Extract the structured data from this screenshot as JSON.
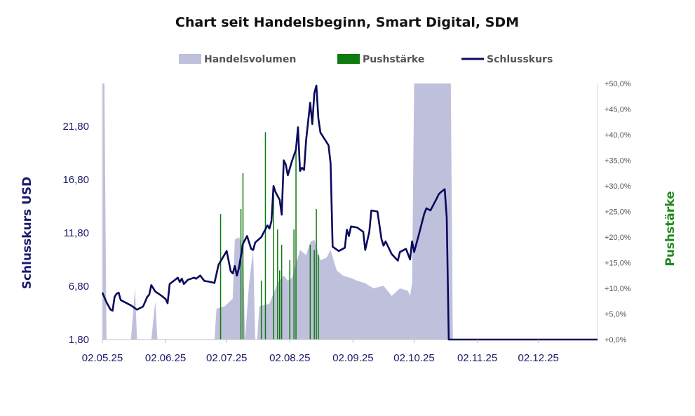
{
  "chart_data": {
    "type": "line",
    "title": "Chart seit Handelsbeginn, Smart Digital, SDM",
    "ylabel": "Schlusskurs USD",
    "y2label": "Pushstärke",
    "ylim": [
      1.8,
      25.8
    ],
    "y2lim": [
      0,
      50
    ],
    "xlim": [
      "2025-05-02",
      "2025-12-31"
    ],
    "legend_position": "top",
    "grid": false,
    "colors": {
      "volume": "#bfc0dc",
      "push": "#0f7a0f",
      "close": "#0a0a5c"
    },
    "legend": [
      "Handelsvolumen",
      "Pushstärke",
      "Schlusskurs"
    ],
    "yticks": [
      "1,80",
      "6,80",
      "11,80",
      "16,80",
      "21,80"
    ],
    "y2ticks": [
      "+0,0%",
      "+5,0%",
      "+10,0%",
      "+15,0%",
      "+20,0%",
      "+25,0%",
      "+30,0%",
      "+35,0%",
      "+40,0%",
      "+45,0%",
      "+50,0%"
    ],
    "xticks": [
      {
        "date": "2025-05-02",
        "label": "02.05.25"
      },
      {
        "date": "2025-06-02",
        "label": "02.06.25"
      },
      {
        "date": "2025-07-02",
        "label": "02.07.25"
      },
      {
        "date": "2025-08-02",
        "label": "02.08.25"
      },
      {
        "date": "2025-09-02",
        "label": "02.09.25"
      },
      {
        "date": "2025-10-02",
        "label": "02.10.25"
      },
      {
        "date": "2025-11-02",
        "label": "02.11.25"
      },
      {
        "date": "2025-12-02",
        "label": "02.12.25"
      }
    ],
    "series": [
      {
        "name": "Schlusskurs",
        "kind": "line",
        "points": [
          [
            "2025-05-02",
            6.2
          ],
          [
            "2025-05-04",
            5.3
          ],
          [
            "2025-05-06",
            4.6
          ],
          [
            "2025-05-07",
            4.5
          ],
          [
            "2025-05-08",
            5.8
          ],
          [
            "2025-05-09",
            6.1
          ],
          [
            "2025-05-10",
            6.2
          ],
          [
            "2025-05-11",
            5.5
          ],
          [
            "2025-05-13",
            5.3
          ],
          [
            "2025-05-16",
            5.0
          ],
          [
            "2025-05-19",
            4.6
          ],
          [
            "2025-05-21",
            4.8
          ],
          [
            "2025-05-22",
            4.9
          ],
          [
            "2025-05-24",
            5.8
          ],
          [
            "2025-05-25",
            6.0
          ],
          [
            "2025-05-26",
            6.9
          ],
          [
            "2025-05-28",
            6.3
          ],
          [
            "2025-05-31",
            5.9
          ],
          [
            "2025-06-02",
            5.6
          ],
          [
            "2025-06-03",
            5.2
          ],
          [
            "2025-06-04",
            7.0
          ],
          [
            "2025-06-06",
            7.3
          ],
          [
            "2025-06-08",
            7.6
          ],
          [
            "2025-06-09",
            7.2
          ],
          [
            "2025-06-10",
            7.5
          ],
          [
            "2025-06-11",
            7.0
          ],
          [
            "2025-06-13",
            7.4
          ],
          [
            "2025-06-16",
            7.6
          ],
          [
            "2025-06-17",
            7.5
          ],
          [
            "2025-06-19",
            7.8
          ],
          [
            "2025-06-21",
            7.3
          ],
          [
            "2025-06-24",
            7.2
          ],
          [
            "2025-06-26",
            7.1
          ],
          [
            "2025-06-28",
            8.8
          ],
          [
            "2025-07-02",
            10.1
          ],
          [
            "2025-07-04",
            8.2
          ],
          [
            "2025-07-05",
            8.0
          ],
          [
            "2025-07-06",
            8.7
          ],
          [
            "2025-07-07",
            7.8
          ],
          [
            "2025-07-08",
            8.5
          ],
          [
            "2025-07-10",
            10.8
          ],
          [
            "2025-07-12",
            11.5
          ],
          [
            "2025-07-14",
            10.3
          ],
          [
            "2025-07-15",
            10.2
          ],
          [
            "2025-07-16",
            10.9
          ],
          [
            "2025-07-19",
            11.4
          ],
          [
            "2025-07-22",
            12.5
          ],
          [
            "2025-07-23",
            12.2
          ],
          [
            "2025-07-24",
            12.9
          ],
          [
            "2025-07-25",
            16.2
          ],
          [
            "2025-07-26",
            15.6
          ],
          [
            "2025-07-28",
            14.9
          ],
          [
            "2025-07-29",
            13.5
          ],
          [
            "2025-07-30",
            18.6
          ],
          [
            "2025-07-31",
            18.2
          ],
          [
            "2025-08-01",
            17.2
          ],
          [
            "2025-08-03",
            18.5
          ],
          [
            "2025-08-05",
            19.6
          ],
          [
            "2025-08-06",
            21.7
          ],
          [
            "2025-08-07",
            17.6
          ],
          [
            "2025-08-08",
            17.9
          ],
          [
            "2025-08-09",
            17.7
          ],
          [
            "2025-08-10",
            20.5
          ],
          [
            "2025-08-12",
            24.0
          ],
          [
            "2025-08-13",
            22.0
          ],
          [
            "2025-08-14",
            24.9
          ],
          [
            "2025-08-15",
            25.6
          ],
          [
            "2025-08-16",
            22.5
          ],
          [
            "2025-08-17",
            21.2
          ],
          [
            "2025-08-19",
            20.6
          ],
          [
            "2025-08-21",
            20.0
          ],
          [
            "2025-08-22",
            18.3
          ],
          [
            "2025-08-23",
            10.5
          ],
          [
            "2025-08-26",
            10.1
          ],
          [
            "2025-08-29",
            10.4
          ],
          [
            "2025-08-30",
            12.1
          ],
          [
            "2025-08-31",
            11.5
          ],
          [
            "2025-09-01",
            12.4
          ],
          [
            "2025-09-04",
            12.3
          ],
          [
            "2025-09-07",
            11.9
          ],
          [
            "2025-09-08",
            10.2
          ],
          [
            "2025-09-10",
            11.9
          ],
          [
            "2025-09-11",
            13.9
          ],
          [
            "2025-09-14",
            13.8
          ],
          [
            "2025-09-16",
            11.2
          ],
          [
            "2025-09-17",
            10.6
          ],
          [
            "2025-09-18",
            11.0
          ],
          [
            "2025-09-21",
            9.8
          ],
          [
            "2025-09-24",
            9.2
          ],
          [
            "2025-09-25",
            10.0
          ],
          [
            "2025-09-28",
            10.3
          ],
          [
            "2025-09-30",
            9.3
          ],
          [
            "2025-10-01",
            11.0
          ],
          [
            "2025-10-02",
            10.0
          ],
          [
            "2025-10-04",
            11.4
          ],
          [
            "2025-10-07",
            13.6
          ],
          [
            "2025-10-08",
            14.1
          ],
          [
            "2025-10-10",
            13.9
          ],
          [
            "2025-10-13",
            15.0
          ],
          [
            "2025-10-14",
            15.4
          ],
          [
            "2025-10-15",
            15.6
          ],
          [
            "2025-10-17",
            15.9
          ],
          [
            "2025-10-18",
            13.2
          ],
          [
            "2025-10-19",
            1.8
          ],
          [
            "2025-12-31",
            1.8
          ]
        ]
      },
      {
        "name": "Handelsvolumen",
        "kind": "area",
        "note": "relative scale, peaks clipped at chart top",
        "points": [
          [
            "2025-05-02",
            1.0
          ],
          [
            "2025-05-03",
            1.0
          ],
          [
            "2025-05-04",
            0.0
          ],
          [
            "2025-05-16",
            0.0
          ],
          [
            "2025-05-18",
            0.2
          ],
          [
            "2025-05-19",
            0.0
          ],
          [
            "2025-05-20",
            0.0
          ],
          [
            "2025-05-21",
            0.0
          ],
          [
            "2025-05-26",
            0.0
          ],
          [
            "2025-05-28",
            0.15
          ],
          [
            "2025-05-29",
            0.0
          ],
          [
            "2025-06-26",
            0.0
          ],
          [
            "2025-06-27",
            0.12
          ],
          [
            "2025-07-01",
            0.13
          ],
          [
            "2025-07-05",
            0.16
          ],
          [
            "2025-07-06",
            0.39
          ],
          [
            "2025-07-08",
            0.4
          ],
          [
            "2025-07-10",
            0.36
          ],
          [
            "2025-07-11",
            0.0
          ],
          [
            "2025-07-13",
            0.22
          ],
          [
            "2025-07-15",
            0.35
          ],
          [
            "2025-07-16",
            0.0
          ],
          [
            "2025-07-17",
            0.0
          ],
          [
            "2025-07-18",
            0.13
          ],
          [
            "2025-07-23",
            0.14
          ],
          [
            "2025-07-27",
            0.22
          ],
          [
            "2025-07-30",
            0.25
          ],
          [
            "2025-08-01",
            0.23
          ],
          [
            "2025-08-03",
            0.24
          ],
          [
            "2025-08-07",
            0.35
          ],
          [
            "2025-08-10",
            0.33
          ],
          [
            "2025-08-12",
            0.38
          ],
          [
            "2025-08-14",
            0.39
          ],
          [
            "2025-08-17",
            0.31
          ],
          [
            "2025-08-20",
            0.32
          ],
          [
            "2025-08-22",
            0.35
          ],
          [
            "2025-08-25",
            0.27
          ],
          [
            "2025-08-28",
            0.25
          ],
          [
            "2025-09-01",
            0.24
          ],
          [
            "2025-09-04",
            0.23
          ],
          [
            "2025-09-08",
            0.22
          ],
          [
            "2025-09-12",
            0.2
          ],
          [
            "2025-09-17",
            0.21
          ],
          [
            "2025-09-21",
            0.17
          ],
          [
            "2025-09-25",
            0.2
          ],
          [
            "2025-09-29",
            0.19
          ],
          [
            "2025-09-30",
            0.17
          ],
          [
            "2025-10-01",
            0.22
          ],
          [
            "2025-10-02",
            1.0
          ],
          [
            "2025-10-20",
            1.0
          ],
          [
            "2025-10-21",
            0.0
          ]
        ]
      },
      {
        "name": "Pushstärke",
        "kind": "bar",
        "points": [
          [
            "2025-06-29",
            24.5
          ],
          [
            "2025-07-09",
            25.5
          ],
          [
            "2025-07-10",
            32.5
          ],
          [
            "2025-07-19",
            11.5
          ],
          [
            "2025-07-21",
            40.5
          ],
          [
            "2025-07-25",
            28.5
          ],
          [
            "2025-07-27",
            21.5
          ],
          [
            "2025-07-28",
            13.5
          ],
          [
            "2025-07-29",
            18.5
          ],
          [
            "2025-08-02",
            15.5
          ],
          [
            "2025-08-04",
            21.5
          ],
          [
            "2025-08-05",
            37.5
          ],
          [
            "2025-08-12",
            18.5
          ],
          [
            "2025-08-14",
            17.5
          ],
          [
            "2025-08-15",
            25.5
          ],
          [
            "2025-08-16",
            16.5
          ]
        ]
      }
    ]
  }
}
